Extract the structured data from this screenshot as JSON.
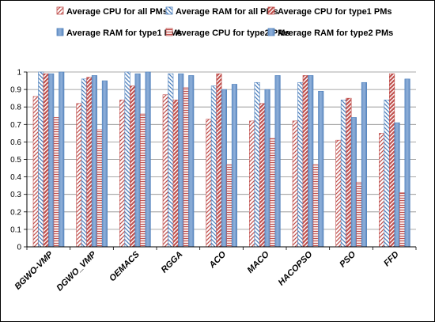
{
  "chart_data": {
    "type": "bar",
    "title": "",
    "xlabel": "",
    "ylabel": "",
    "ylim": [
      0,
      1
    ],
    "yticks": [
      "0",
      "0.1",
      "0.2",
      "0.3",
      "0.4",
      "0.5",
      "0.6",
      "0.7",
      "0.8",
      "0.9",
      "1"
    ],
    "grid": true,
    "legend_position": "top",
    "categories": [
      "BGWO-VMP",
      "DGWO_VMP",
      "OEMACS",
      "RGGA",
      "ACO",
      "MACO",
      "HACOPSO",
      "PSO",
      "FFD"
    ],
    "series": [
      {
        "name": "Average CPU for all PMs",
        "values": [
          0.86,
          0.82,
          0.84,
          0.87,
          0.73,
          0.72,
          0.72,
          0.61,
          0.65
        ]
      },
      {
        "name": "Average RAM for all PMs",
        "values": [
          1.0,
          0.96,
          1.0,
          0.99,
          0.92,
          0.94,
          0.94,
          0.84,
          0.84
        ]
      },
      {
        "name": "Average CPU for type1 PMs",
        "values": [
          0.99,
          0.97,
          0.92,
          0.84,
          0.99,
          0.82,
          0.98,
          0.85,
          0.99
        ]
      },
      {
        "name": "Average RAM for type1 PMs",
        "values": [
          0.99,
          0.98,
          0.99,
          0.99,
          0.9,
          0.9,
          0.98,
          0.74,
          0.71
        ]
      },
      {
        "name": "Average CPU for type2 PMs",
        "values": [
          0.74,
          0.67,
          0.76,
          0.91,
          0.47,
          0.62,
          0.47,
          0.37,
          0.31
        ]
      },
      {
        "name": "Average RAM for type2 PMs",
        "values": [
          1.0,
          0.95,
          1.0,
          0.98,
          0.93,
          0.98,
          0.89,
          0.94,
          0.96
        ]
      }
    ],
    "series_styles": [
      {
        "color": "#c0504d",
        "pattern": "diag-forward"
      },
      {
        "color": "#4f81bd",
        "pattern": "diag-back"
      },
      {
        "color": "#c0504d",
        "pattern": "diag-forward-thick"
      },
      {
        "color": "#4f81bd",
        "pattern": "solid"
      },
      {
        "color": "#c0504d",
        "pattern": "horizontal"
      },
      {
        "color": "#4f81bd",
        "pattern": "solid"
      }
    ]
  }
}
